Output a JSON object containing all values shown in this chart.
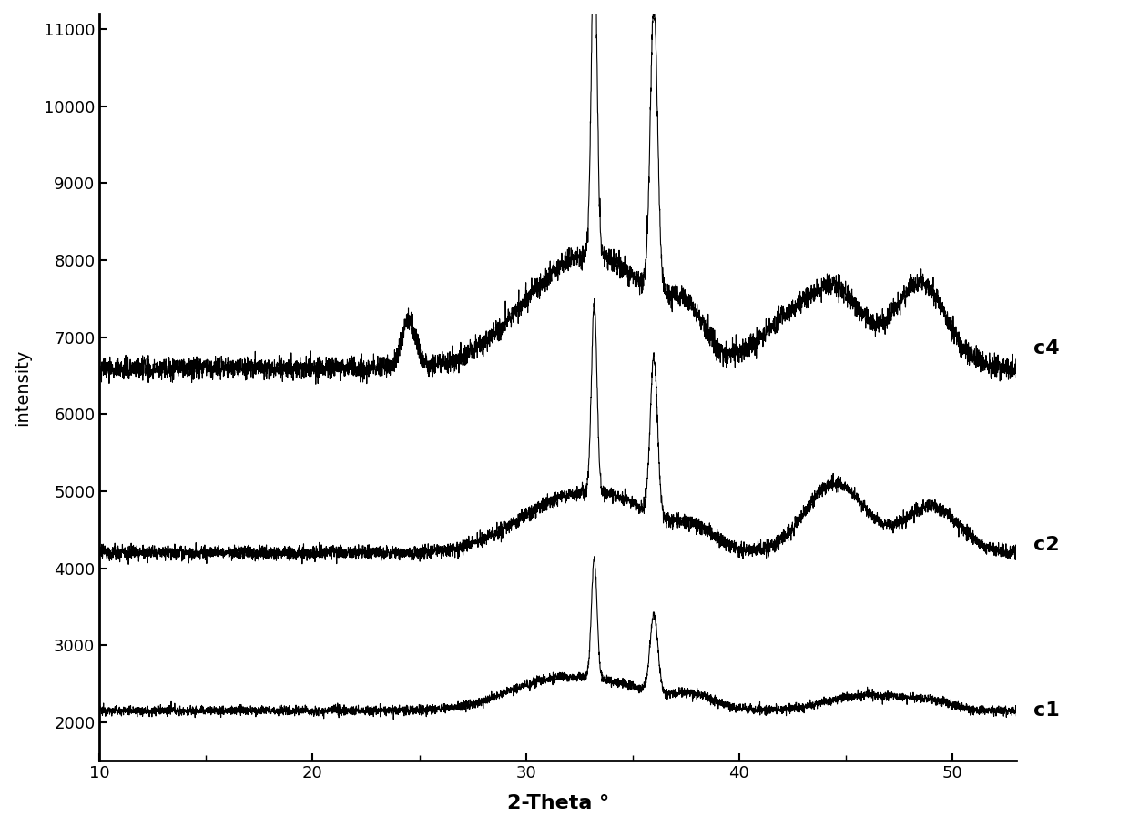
{
  "xlabel": "2-Theta °",
  "ylabel": "intensity",
  "xlim": [
    10,
    53
  ],
  "ylim": [
    1500,
    11200
  ],
  "yticks": [
    2000,
    3000,
    4000,
    5000,
    6000,
    7000,
    8000,
    9000,
    10000,
    11000
  ],
  "xticks": [
    10,
    20,
    30,
    40,
    50
  ],
  "labels": [
    "c1",
    "c2",
    "c4"
  ],
  "line_color": "#000000",
  "line_width": 0.8,
  "background_color": "#ffffff",
  "xlabel_fontsize": 16,
  "ylabel_fontsize": 14,
  "tick_fontsize": 13,
  "label_fontsize": 16
}
